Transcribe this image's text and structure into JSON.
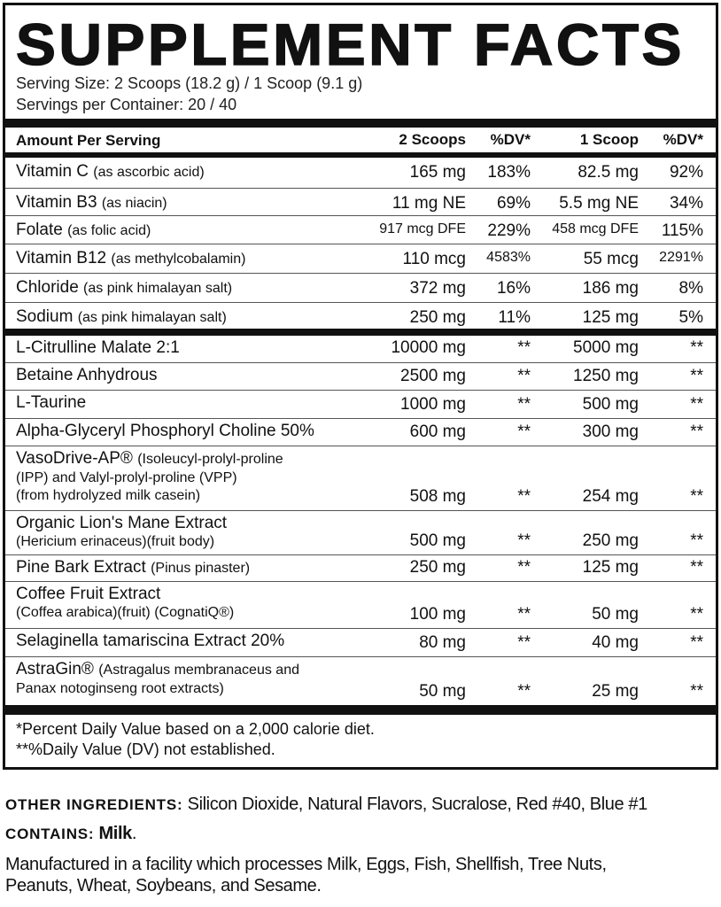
{
  "title": "SUPPLEMENT FACTS",
  "serving_size": "Serving Size: 2 Scoops (18.2 g) / 1 Scoop (9.1 g)",
  "servings_per_container": "Servings per Container: 20 / 40",
  "header": {
    "amount": "Amount Per Serving",
    "col1": "2 Scoops",
    "col2": "%DV*",
    "col3": "1 Scoop",
    "col4": "%DV*"
  },
  "vitamins": [
    {
      "name": "Vitamin C",
      "sub": "(as ascorbic acid)",
      "a": "165 mg",
      "b": "183%",
      "c": "82.5 mg",
      "d": "92%"
    },
    {
      "name": "Vitamin B3",
      "sub": "(as niacin)",
      "a": "11 mg NE",
      "b": "69%",
      "c": "5.5 mg NE",
      "d": "34%"
    },
    {
      "name": "Folate",
      "sub": "(as folic acid)",
      "a": "917 mcg DFE",
      "b": "229%",
      "c": "458 mcg DFE",
      "d": "115%"
    },
    {
      "name": "Vitamin B12",
      "sub": "(as methylcobalamin)",
      "a": "110 mcg",
      "b": "4583%",
      "c": "55 mcg",
      "d": "2291%"
    },
    {
      "name": "Chloride",
      "sub": "(as pink himalayan salt)",
      "a": "372 mg",
      "b": "16%",
      "c": "186 mg",
      "d": "8%"
    },
    {
      "name": "Sodium",
      "sub": "(as pink himalayan salt)",
      "a": "250 mg",
      "b": "11%",
      "c": "125 mg",
      "d": "5%"
    }
  ],
  "ingredients": [
    {
      "line1": "L-Citrulline Malate 2:1",
      "a": "10000 mg",
      "b": "**",
      "c": "5000 mg",
      "d": "**"
    },
    {
      "line1": "Betaine Anhydrous",
      "a": "2500 mg",
      "b": "**",
      "c": "1250 mg",
      "d": "**"
    },
    {
      "line1": "L-Taurine",
      "a": "1000 mg",
      "b": "**",
      "c": "500 mg",
      "d": "**"
    },
    {
      "line1": "Alpha-Glyceryl Phosphoryl Choline 50%",
      "a": "600 mg",
      "b": "**",
      "c": "300 mg",
      "d": "**"
    },
    {
      "line1": "VasoDrive-AP®",
      "sub1": "(Isoleucyl-prolyl-proline",
      "line2": "(IPP) and Valyl-prolyl-proline (VPP)",
      "line3": "(from hydrolyzed milk casein)",
      "a": "508 mg",
      "b": "**",
      "c": "254 mg",
      "d": "**"
    },
    {
      "line1": "Organic Lion's Mane Extract",
      "line2": "(Hericium erinaceus)(fruit body)",
      "a": "500 mg",
      "b": "**",
      "c": "250 mg",
      "d": "**"
    },
    {
      "line1": "Pine Bark Extract",
      "sub1": "(Pinus pinaster)",
      "a": "250 mg",
      "b": "**",
      "c": "125 mg",
      "d": "**"
    },
    {
      "line1": "Coffee Fruit Extract",
      "line2": "(Coffea arabica)(fruit) (CognatiQ®)",
      "a": "100 mg",
      "b": "**",
      "c": "50 mg",
      "d": "**"
    },
    {
      "line1": "Selaginella tamariscina Extract 20%",
      "a": "80 mg",
      "b": "**",
      "c": "40 mg",
      "d": "**"
    },
    {
      "line1": "AstraGin®",
      "sub1": "(Astragalus membranaceus and",
      "line2": "Panax notoginseng root extracts)",
      "a": "50 mg",
      "b": "**",
      "c": "25 mg",
      "d": "**"
    }
  ],
  "footnotes": [
    "*Percent Daily Value based on a 2,000 calorie diet.",
    "**%Daily Value (DV) not established."
  ],
  "other_ingredients": {
    "label": "OTHER INGREDIENTS:",
    "text": " Silicon Dioxide, Natural Flavors, Sucralose, Red #40, Blue #1"
  },
  "contains": {
    "label": "CONTAINS:",
    "allergen": " Milk",
    "end": "."
  },
  "facility": [
    "Manufactured in a facility which processes Milk, Eggs, Fish, Shellfish, Tree Nuts,",
    "Peanuts, Wheat, Soybeans, and Sesame."
  ]
}
